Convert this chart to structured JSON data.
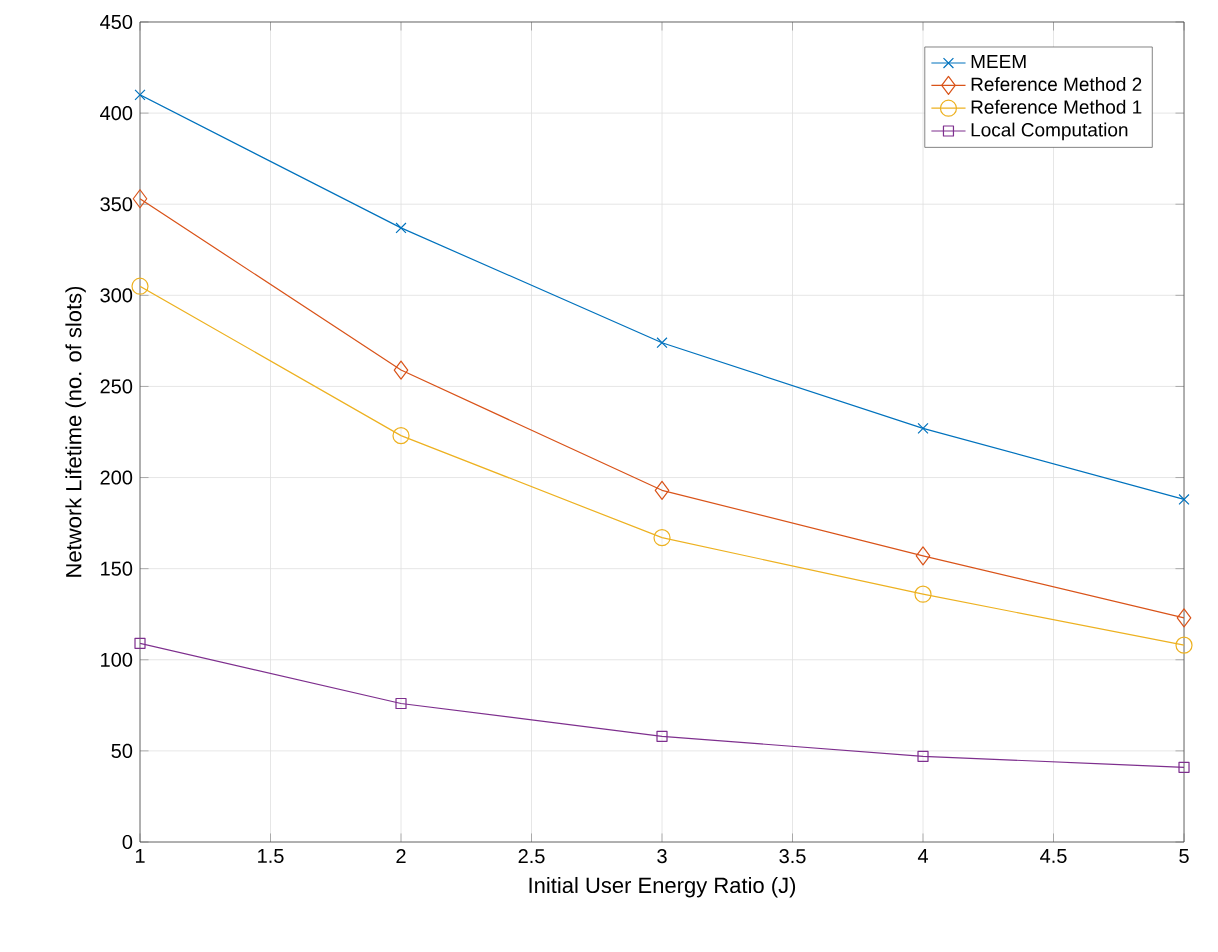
{
  "chart_data": {
    "type": "line",
    "xlabel": "Initial User Energy Ratio (J)",
    "ylabel": "Network Lifetime (no. of slots)",
    "x": [
      1,
      2,
      3,
      4,
      5
    ],
    "series": [
      {
        "name": "MEEM",
        "color": "#0072bd",
        "marker": "cross",
        "values": [
          410,
          337,
          274,
          227,
          188
        ]
      },
      {
        "name": "Reference Method 2",
        "color": "#d95319",
        "marker": "diamond",
        "values": [
          353,
          259,
          193,
          157,
          123
        ]
      },
      {
        "name": "Reference Method 1",
        "color": "#edb120",
        "marker": "circle",
        "values": [
          305,
          223,
          167,
          136,
          108
        ]
      },
      {
        "name": "Local Computation",
        "color": "#7e2f8e",
        "marker": "square",
        "values": [
          109,
          76,
          58,
          47,
          41
        ]
      }
    ],
    "xlim": [
      1,
      5
    ],
    "xticks": [
      1,
      1.5,
      2,
      2.5,
      3,
      3.5,
      4,
      4.5,
      5
    ],
    "ylim": [
      0,
      450
    ],
    "yticks": [
      0,
      50,
      100,
      150,
      200,
      250,
      300,
      350,
      400,
      450
    ],
    "grid": true,
    "legend": "top right",
    "line_style": "solid"
  }
}
